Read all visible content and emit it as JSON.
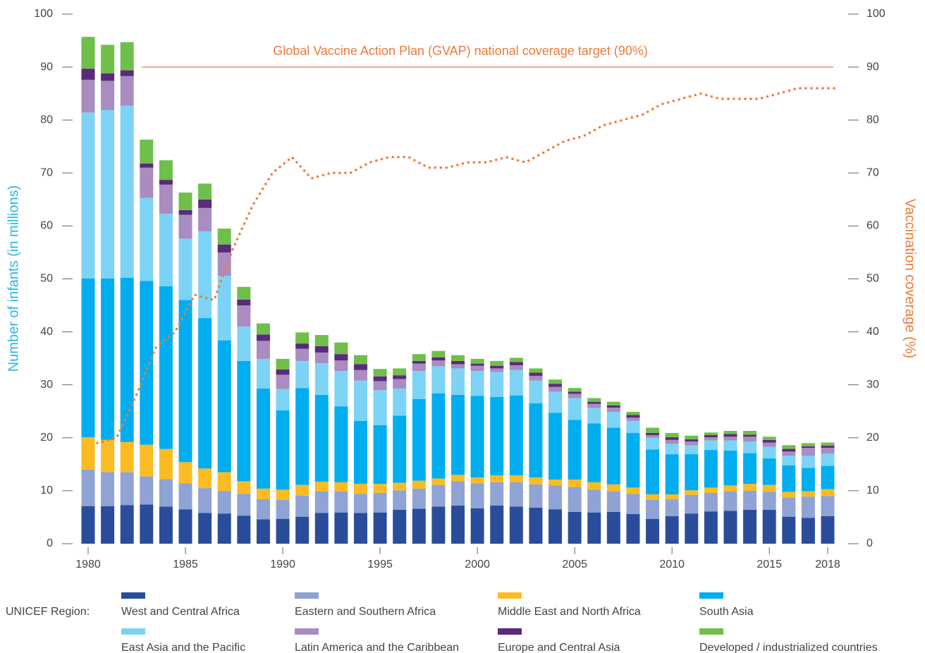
{
  "chart_data": {
    "type": "bar",
    "stacked": true,
    "x": [
      1980,
      1981,
      1982,
      1983,
      1984,
      1985,
      1986,
      1987,
      1988,
      1989,
      1990,
      1991,
      1992,
      1993,
      1994,
      1995,
      1996,
      1997,
      1998,
      1999,
      2000,
      2001,
      2002,
      2003,
      2004,
      2005,
      2006,
      2007,
      2008,
      2009,
      2010,
      2011,
      2012,
      2013,
      2014,
      2015,
      2016,
      2017,
      2018
    ],
    "xlim": [
      1980,
      2018
    ],
    "xticks": [
      1980,
      1985,
      1990,
      1995,
      2000,
      2005,
      2010,
      2015,
      2018
    ],
    "ylim": [
      0,
      100
    ],
    "yticks": [
      0,
      10,
      20,
      30,
      40,
      50,
      60,
      70,
      80,
      90,
      100
    ],
    "y2lim": [
      0,
      100
    ],
    "y2ticks": [
      0,
      10,
      20,
      30,
      40,
      50,
      60,
      70,
      80,
      90,
      100
    ],
    "ylabel": "Number of infants (in millions)",
    "y2label": "Vaccination coverage (%)",
    "legend_title": "UNICEF Region:",
    "series": [
      {
        "name": "West and Central Africa",
        "color": "#2a4d9b",
        "values": [
          7.1,
          7.1,
          7.3,
          7.4,
          7.0,
          6.5,
          5.8,
          5.7,
          5.3,
          4.6,
          4.7,
          5.1,
          5.8,
          5.9,
          5.8,
          5.9,
          6.4,
          6.6,
          7.0,
          7.2,
          6.7,
          7.2,
          7.0,
          6.8,
          6.5,
          6.0,
          5.9,
          6.0,
          5.6,
          4.7,
          5.2,
          5.7,
          6.1,
          6.2,
          6.4,
          6.4,
          5.1,
          4.9,
          5.2
        ]
      },
      {
        "name": "Eastern and Southern Africa",
        "color": "#8fa3d4",
        "values": [
          6.9,
          6.4,
          6.2,
          5.3,
          5.2,
          4.9,
          4.7,
          4.3,
          4.1,
          3.8,
          3.6,
          4.0,
          4.1,
          4.0,
          3.6,
          3.7,
          3.7,
          3.8,
          4.1,
          4.6,
          4.7,
          4.4,
          4.6,
          4.4,
          4.5,
          4.7,
          4.3,
          3.9,
          3.8,
          3.6,
          3.2,
          3.5,
          3.5,
          3.7,
          3.6,
          3.4,
          3.6,
          4.0,
          3.8
        ]
      },
      {
        "name": "Middle East and North Africa",
        "color": "#fbbb23",
        "values": [
          6.1,
          6.1,
          5.7,
          6.0,
          5.7,
          4.0,
          3.7,
          3.5,
          2.4,
          2.0,
          1.9,
          2.0,
          1.8,
          1.7,
          1.9,
          1.7,
          1.4,
          1.5,
          1.2,
          1.2,
          1.1,
          1.3,
          1.3,
          1.3,
          1.1,
          1.4,
          1.4,
          1.3,
          1.2,
          1.0,
          0.9,
          0.9,
          1.0,
          1.1,
          1.3,
          1.3,
          1.1,
          1.0,
          1.3
        ]
      },
      {
        "name": "South Asia",
        "color": "#00aeef",
        "values": [
          30.0,
          30.5,
          31.0,
          30.9,
          30.7,
          30.6,
          28.4,
          24.9,
          22.7,
          18.9,
          15.0,
          18.3,
          16.4,
          14.3,
          11.9,
          11.1,
          12.7,
          15.4,
          16.1,
          15.1,
          15.4,
          14.8,
          15.1,
          14.0,
          12.6,
          11.3,
          11.1,
          10.7,
          10.3,
          8.5,
          7.6,
          6.8,
          7.1,
          6.6,
          5.8,
          5.0,
          5.0,
          4.4,
          4.4
        ]
      },
      {
        "name": "East Asia and the Pacific",
        "color": "#7dd3f5",
        "values": [
          31.3,
          31.8,
          32.5,
          15.7,
          13.7,
          11.6,
          16.4,
          12.2,
          6.5,
          5.6,
          4.0,
          5.1,
          6.0,
          6.7,
          7.6,
          6.6,
          5.1,
          5.3,
          5.1,
          5.0,
          4.7,
          4.7,
          4.8,
          4.3,
          4.0,
          4.1,
          2.9,
          3.0,
          2.3,
          2.2,
          2.0,
          1.7,
          1.8,
          1.9,
          2.2,
          2.2,
          1.8,
          2.3,
          2.3
        ]
      },
      {
        "name": "Latin America and the Caribbean",
        "color": "#a98cc0",
        "values": [
          6.2,
          5.5,
          5.6,
          5.7,
          5.5,
          4.5,
          4.4,
          4.4,
          4.0,
          3.4,
          2.7,
          2.3,
          2.0,
          2.0,
          2.0,
          1.7,
          1.8,
          1.4,
          1.1,
          0.8,
          1.0,
          0.7,
          0.9,
          0.9,
          0.9,
          0.8,
          0.8,
          0.8,
          0.6,
          0.5,
          0.7,
          0.7,
          0.6,
          0.7,
          0.9,
          0.8,
          0.8,
          1.5,
          1.1
        ]
      },
      {
        "name": "Europe and Central Asia",
        "color": "#5a2a7c",
        "values": [
          2.1,
          1.4,
          1.1,
          0.8,
          0.9,
          0.9,
          1.6,
          1.5,
          1.1,
          1.2,
          1.0,
          1.0,
          1.2,
          1.2,
          1.1,
          0.9,
          0.7,
          0.5,
          0.6,
          0.6,
          0.4,
          0.5,
          0.6,
          0.6,
          0.6,
          0.4,
          0.4,
          0.4,
          0.5,
          0.4,
          0.5,
          0.4,
          0.4,
          0.5,
          0.4,
          0.5,
          0.5,
          0.3,
          0.4
        ]
      },
      {
        "name": "Developed / industrialized countries",
        "color": "#6fbf4a",
        "values": [
          6.0,
          5.4,
          5.3,
          4.5,
          3.7,
          3.3,
          3.0,
          3.0,
          2.4,
          2.1,
          2.0,
          2.1,
          2.1,
          2.2,
          1.7,
          1.4,
          1.3,
          1.3,
          1.2,
          1.1,
          0.9,
          0.9,
          0.8,
          0.8,
          0.8,
          0.7,
          0.7,
          0.7,
          0.6,
          1.0,
          0.8,
          0.7,
          0.5,
          0.6,
          0.7,
          0.6,
          0.7,
          0.6,
          0.6
        ]
      }
    ],
    "coverage": {
      "axis": "y2",
      "color": "#ee7a3a",
      "values": [
        19,
        20,
        28,
        37,
        40,
        47,
        46,
        56,
        64,
        70,
        73,
        69,
        70,
        70,
        72,
        73,
        73,
        71,
        71,
        72,
        72,
        73,
        72,
        74,
        76,
        77,
        79,
        80,
        81,
        83,
        84,
        85,
        84,
        84,
        84,
        85,
        86,
        86,
        86
      ]
    },
    "target": {
      "label": "Global Vaccine Action Plan (GVAP) national coverage target (90%)",
      "value": 90,
      "color": "#ee7a3a"
    }
  }
}
